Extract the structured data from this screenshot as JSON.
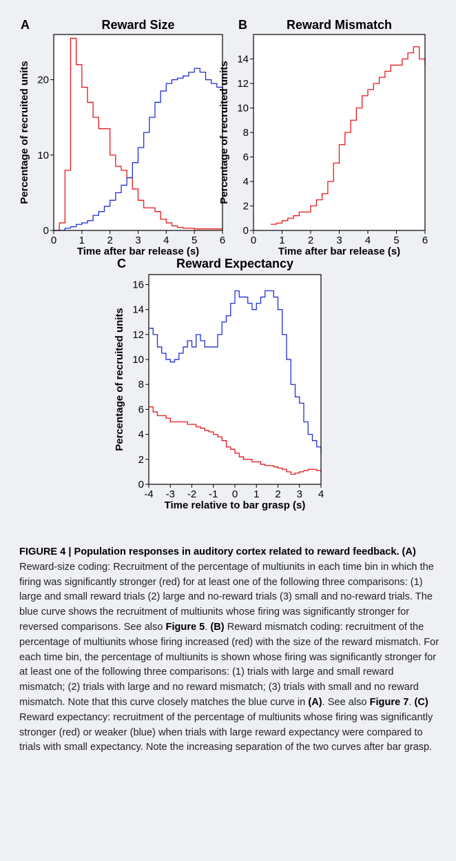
{
  "chart_data": [
    {
      "type": "line",
      "panel": "A",
      "title": "Reward Size",
      "xlabel": "Time after bar release (s)",
      "ylabel": "Percentage of recruited units",
      "x": [
        0,
        0.2,
        0.4,
        0.6,
        0.8,
        1.0,
        1.2,
        1.4,
        1.6,
        1.8,
        2.0,
        2.2,
        2.4,
        2.6,
        2.8,
        3.0,
        3.2,
        3.4,
        3.6,
        3.8,
        4.0,
        4.2,
        4.4,
        4.6,
        4.8,
        5.0,
        5.2,
        5.4,
        5.6,
        5.8,
        6.0
      ],
      "series": [
        {
          "name": "red",
          "color": "#e8161b",
          "values": [
            0,
            1,
            8,
            25.5,
            22,
            19,
            17,
            15,
            13.5,
            13.5,
            10,
            8.5,
            8,
            7,
            5.5,
            4,
            3,
            3,
            2.5,
            1.5,
            1,
            0.6,
            0.4,
            0.3,
            0.3,
            0.2,
            0.2,
            0.2,
            0.2,
            0.2,
            0.2
          ]
        },
        {
          "name": "blue",
          "color": "#1f2fd6",
          "values": [
            0,
            0,
            0.3,
            0.5,
            0.8,
            1,
            1.3,
            2,
            2.5,
            3.2,
            4,
            5,
            6,
            7,
            9,
            11,
            13,
            15,
            17,
            18.5,
            19.5,
            20,
            20.2,
            20.5,
            21,
            21.5,
            21,
            20,
            19.5,
            19,
            18
          ]
        }
      ],
      "xlim": [
        0,
        6
      ],
      "xticks": [
        0,
        1,
        2,
        3,
        4,
        5,
        6
      ],
      "ylim": [
        0,
        26
      ],
      "yticks": [
        0,
        10,
        20
      ]
    },
    {
      "type": "line",
      "panel": "B",
      "title": "Reward Mismatch",
      "xlabel": "Time after bar release (s)",
      "ylabel": "Percentage of recruited units",
      "x": [
        0.6,
        0.8,
        1.0,
        1.2,
        1.4,
        1.6,
        1.8,
        2.0,
        2.2,
        2.4,
        2.6,
        2.8,
        3.0,
        3.2,
        3.4,
        3.6,
        3.8,
        4.0,
        4.2,
        4.4,
        4.6,
        4.8,
        5.0,
        5.2,
        5.4,
        5.6,
        5.8,
        6.0
      ],
      "series": [
        {
          "name": "red",
          "color": "#e8161b",
          "values": [
            0.5,
            0.6,
            0.8,
            1,
            1.2,
            1.5,
            1.5,
            2,
            2.5,
            3,
            4,
            5.5,
            7,
            8,
            9,
            10,
            11,
            11.5,
            12,
            12.5,
            13,
            13.5,
            13.5,
            14,
            14.5,
            15,
            14,
            13.5
          ]
        }
      ],
      "xlim": [
        0,
        6
      ],
      "xticks": [
        0,
        1,
        2,
        3,
        4,
        5,
        6
      ],
      "ylim": [
        0,
        16
      ],
      "yticks": [
        0,
        2,
        4,
        6,
        8,
        10,
        12,
        14
      ]
    },
    {
      "type": "line",
      "panel": "C",
      "title": "Reward Expectancy",
      "xlabel": "Time relative to bar grasp (s)",
      "ylabel": "Percentage of recruited units",
      "x": [
        -4,
        -3.8,
        -3.6,
        -3.4,
        -3.2,
        -3,
        -2.8,
        -2.6,
        -2.4,
        -2.2,
        -2,
        -1.8,
        -1.6,
        -1.4,
        -1.2,
        -1,
        -0.8,
        -0.6,
        -0.4,
        -0.2,
        0,
        0.2,
        0.4,
        0.6,
        0.8,
        1,
        1.2,
        1.4,
        1.6,
        1.8,
        2,
        2.2,
        2.4,
        2.6,
        2.8,
        3,
        3.2,
        3.4,
        3.6,
        3.8,
        4
      ],
      "series": [
        {
          "name": "blue",
          "color": "#1f2fd6",
          "values": [
            12.5,
            12,
            11,
            10.5,
            10,
            9.8,
            10,
            10.5,
            11,
            11.5,
            11,
            12,
            11.5,
            11,
            11,
            11,
            12,
            13,
            13.5,
            14.5,
            15.5,
            15,
            15,
            14.5,
            14,
            14.5,
            15,
            15.5,
            15.5,
            15,
            14,
            12,
            10,
            8,
            7,
            6.5,
            5,
            4,
            3.5,
            3,
            2.5
          ]
        },
        {
          "name": "red",
          "color": "#e8161b",
          "values": [
            6.2,
            5.8,
            5.5,
            5.5,
            5.3,
            5,
            5,
            5,
            5,
            4.8,
            4.8,
            4.6,
            4.5,
            4.3,
            4.2,
            4,
            3.8,
            3.5,
            3,
            2.8,
            2.5,
            2.2,
            2,
            2,
            1.8,
            1.8,
            1.6,
            1.5,
            1.5,
            1.4,
            1.3,
            1.2,
            1,
            0.8,
            0.9,
            1,
            1.1,
            1.2,
            1.2,
            1.1,
            1
          ]
        }
      ],
      "xlim": [
        -4,
        4
      ],
      "xticks": [
        -4,
        -3,
        -2,
        -1,
        0,
        1,
        2,
        3,
        4
      ],
      "ylim": [
        0,
        16.8
      ],
      "yticks": [
        0,
        2,
        4,
        6,
        8,
        10,
        12,
        14,
        16
      ]
    }
  ],
  "caption": [
    {
      "text": "FIGURE 4 | Population responses in auditory cortex related to reward feedback. (A)",
      "bold": true
    },
    {
      "text": " Reward-size coding: Recruitment of the percentage of multiunits in each time bin in which the firing was significantly stronger (red) for at least one of the following three comparisons: (1) large and small reward trials (2) large and no-reward trials (3) small and no-reward trials. The blue curve shows the recruitment of multiunits whose firing was significantly stronger for reversed comparisons. See also ",
      "bold": false
    },
    {
      "text": "Figure 5",
      "bold": true
    },
    {
      "text": ". ",
      "bold": false
    },
    {
      "text": "(B)",
      "bold": true
    },
    {
      "text": " Reward mismatch coding: recruitment of the percentage of multiunits whose firing increased (red) with the size of the reward mismatch. For each time bin, the percentage of multiunits is shown whose firing was significantly stronger for at least one of the following three comparisons: (1) trials with large and small reward mismatch; (2) trials with large and no reward mismatch; (3) trials with small and no reward mismatch. Note that this curve closely matches the blue curve in ",
      "bold": false
    },
    {
      "text": "(A)",
      "bold": true
    },
    {
      "text": ". See also ",
      "bold": false
    },
    {
      "text": "Figure 7",
      "bold": true
    },
    {
      "text": ". ",
      "bold": false
    },
    {
      "text": "(C)",
      "bold": true
    },
    {
      "text": " Reward expectancy: recruitment of the percentage of multiunits whose firing was significantly stronger (red) or weaker (blue) when trials with large reward expectancy were compared to trials with small expectancy. Note the increasing separation of the two curves after bar grasp.",
      "bold": false
    }
  ]
}
